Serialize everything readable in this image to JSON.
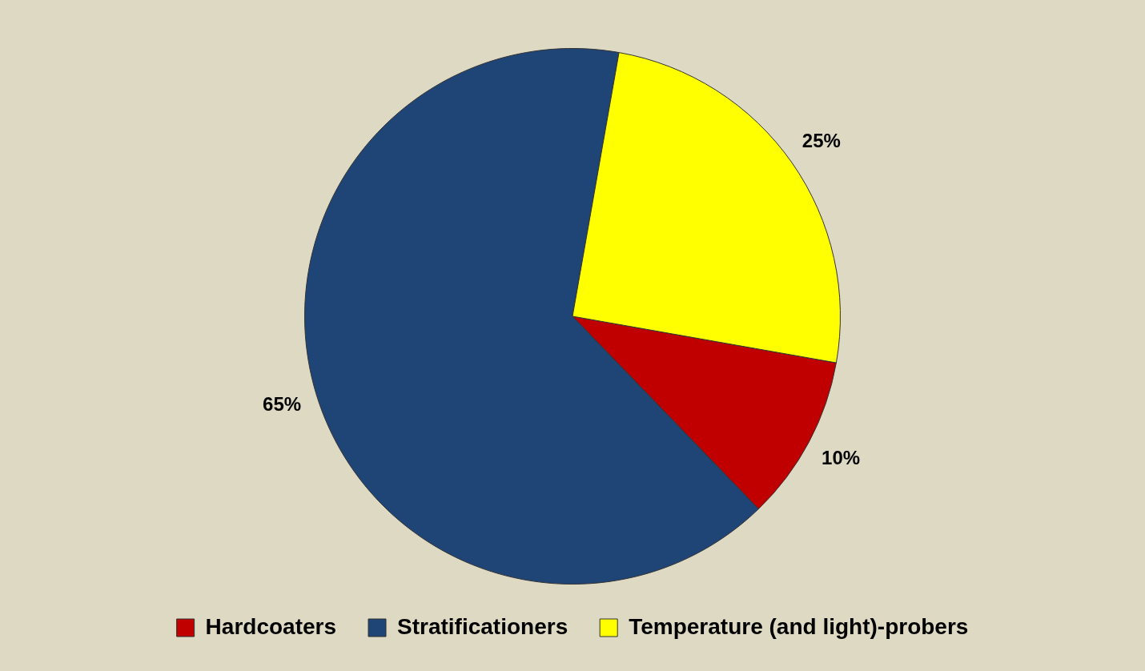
{
  "chart_data": {
    "type": "pie",
    "categories": [
      "Hardcoaters",
      "Stratificationers",
      "Temperature (and light)-probers"
    ],
    "values": [
      10,
      65,
      25
    ],
    "colors": [
      "#c00000",
      "#1f4577",
      "#ffff00"
    ],
    "value_labels": [
      "10%",
      "65%",
      "25%"
    ],
    "legend": "bottom"
  }
}
